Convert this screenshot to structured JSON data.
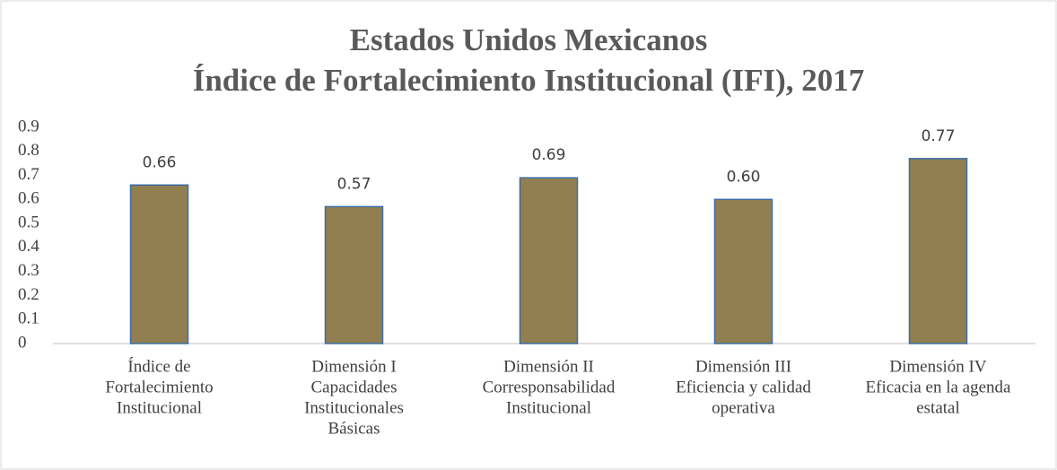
{
  "chart_data": {
    "type": "bar",
    "title": [
      "Estados Unidos Mexicanos",
      "Índice de Fortalecimiento Institucional (IFI), 2017"
    ],
    "categories": [
      [
        "Índice de",
        "Fortalecimiento",
        "Institucional"
      ],
      [
        "Dimensión I",
        "Capacidades",
        "Institucionales",
        "Básicas"
      ],
      [
        "Dimensión II",
        "Corresponsabilidad",
        "Institucional"
      ],
      [
        "Dimensión III",
        "Eficiencia y calidad",
        "operativa"
      ],
      [
        "Dimensión IV",
        "Eficacia en la agenda",
        "estatal"
      ]
    ],
    "values": [
      0.66,
      0.57,
      0.69,
      0.6,
      0.77
    ],
    "value_labels": [
      "0.66",
      "0.57",
      "0.69",
      "0.60",
      "0.77"
    ],
    "color": "#917f52",
    "edge_color": "#3b6ea5",
    "ylim": [
      0,
      0.9
    ],
    "yticks": [
      0,
      0.1,
      0.2,
      0.3,
      0.4,
      0.5,
      0.6,
      0.7,
      0.8,
      0.9
    ],
    "grid": false
  }
}
